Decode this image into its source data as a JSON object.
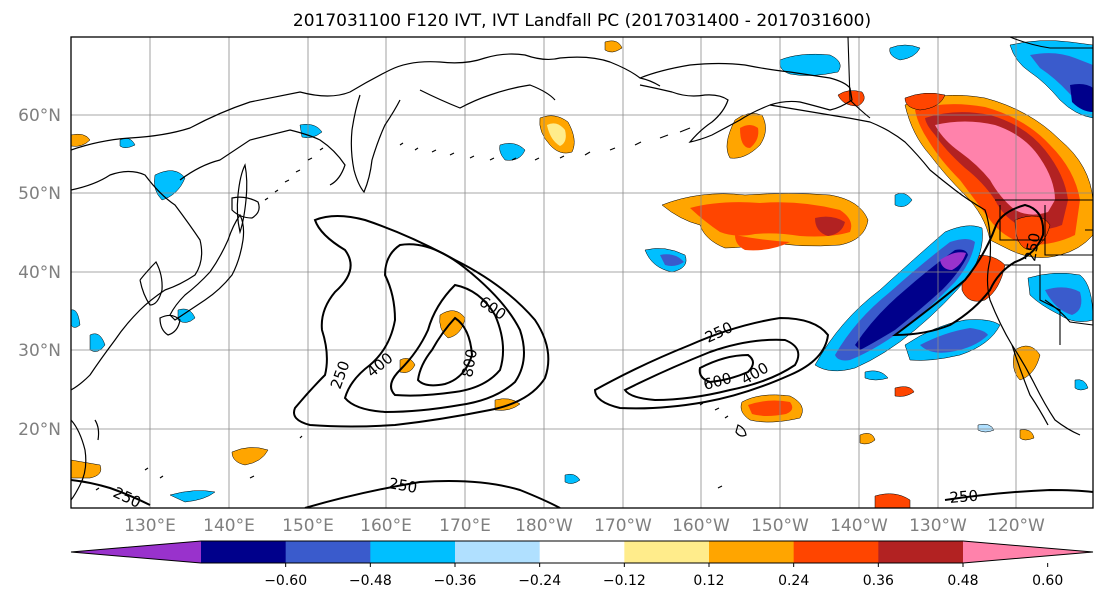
{
  "title": "2017031100 F120 IVT, IVT Landfall PC (2017031400 - 2017031600)",
  "lat_labels": [
    "60°N",
    "50°N",
    "40°N",
    "30°N",
    "20°N"
  ],
  "lon_labels": [
    "130°E",
    "140°E",
    "150°E",
    "160°E",
    "170°E",
    "180°W",
    "170°W",
    "160°W",
    "150°W",
    "140°W",
    "130°W",
    "120°W"
  ],
  "colorbar": {
    "colors": [
      "#9932cc",
      "#00008b",
      "#3a5bcc",
      "#00bfff",
      "#b0e0ff",
      "#ffffff",
      "#ffec8b",
      "#ffa500",
      "#ff4500",
      "#b22222",
      "#ff82ab"
    ],
    "ticks": [
      "−0.60",
      "−0.48",
      "−0.36",
      "−0.24",
      "−0.12",
      "0.12",
      "0.24",
      "0.36",
      "0.48",
      "0.60"
    ]
  },
  "ivt_contour_labels": {
    "west_250": "250",
    "west_400": "400",
    "west_600": "600",
    "west_800": "800",
    "east_250": "250",
    "east_400": "400",
    "east_600": "600",
    "south_250_a": "250",
    "south_250_b": "250",
    "south_250_c": "250",
    "coast_250": "250"
  }
}
